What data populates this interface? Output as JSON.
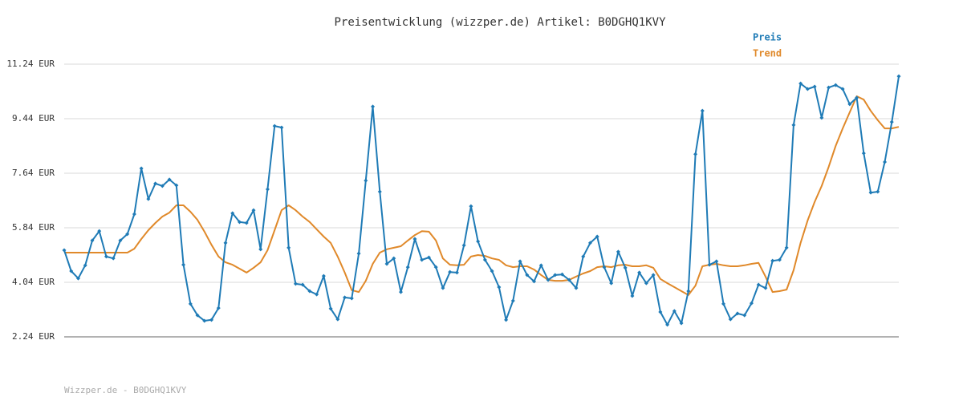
{
  "chart_data": {
    "type": "line",
    "title": "Preisentwicklung (wizzper.de) Artikel: B0DGHQ1KVY",
    "footer": "Wizzper.de - B0DGHQ1KVY",
    "ylim": [
      2.24,
      11.24
    ],
    "yticks": [
      {
        "value": 2.24,
        "label": "2.24 EUR"
      },
      {
        "value": 4.04,
        "label": "4.04 EUR"
      },
      {
        "value": 5.84,
        "label": "5.84 EUR"
      },
      {
        "value": 7.64,
        "label": "7.64 EUR"
      },
      {
        "value": 9.44,
        "label": "9.44 EUR"
      },
      {
        "value": 11.24,
        "label": "11.24 EUR"
      }
    ],
    "grid": true,
    "legend": "top-right",
    "series": [
      {
        "name": "Preis",
        "color": "#1f7bb6",
        "markers": true,
        "values": [
          5.1,
          4.41,
          4.17,
          4.6,
          5.42,
          5.73,
          4.89,
          4.83,
          5.42,
          5.63,
          6.29,
          7.8,
          6.79,
          7.3,
          7.22,
          7.43,
          7.24,
          4.62,
          3.33,
          2.95,
          2.77,
          2.8,
          3.19,
          5.34,
          6.32,
          6.03,
          6.0,
          6.42,
          5.13,
          7.11,
          9.2,
          9.15,
          5.18,
          3.99,
          3.96,
          3.75,
          3.64,
          4.25,
          3.17,
          2.82,
          3.54,
          3.51,
          4.99,
          7.4,
          9.84,
          7.03,
          4.65,
          4.83,
          3.72,
          4.54,
          5.47,
          4.78,
          4.86,
          4.54,
          3.85,
          4.38,
          4.36,
          5.26,
          6.55,
          5.39,
          4.78,
          4.41,
          3.88,
          2.8,
          3.43,
          4.73,
          4.28,
          4.07,
          4.6,
          4.12,
          4.28,
          4.3,
          4.12,
          3.85,
          4.89,
          5.34,
          5.55,
          4.54,
          4.01,
          5.05,
          4.52,
          3.59,
          4.36,
          4.01,
          4.28,
          3.06,
          2.64,
          3.09,
          2.69,
          3.75,
          8.27,
          9.7,
          4.62,
          4.73,
          3.33,
          2.82,
          3.01,
          2.95,
          3.35,
          3.96,
          3.85,
          4.75,
          4.78,
          5.18,
          9.23,
          10.6,
          10.42,
          10.5,
          9.47,
          10.47,
          10.55,
          10.42,
          9.92,
          10.13,
          8.3,
          7.0,
          7.03,
          8.01,
          9.33,
          10.84
        ]
      },
      {
        "name": "Trend",
        "color": "#e0892a",
        "markers": false,
        "values": [
          5.02,
          5.02,
          5.02,
          5.02,
          5.02,
          5.02,
          5.02,
          5.02,
          5.02,
          5.02,
          5.15,
          5.47,
          5.76,
          6.0,
          6.21,
          6.34,
          6.58,
          6.58,
          6.37,
          6.1,
          5.71,
          5.28,
          4.89,
          4.7,
          4.62,
          4.49,
          4.36,
          4.52,
          4.7,
          5.1,
          5.76,
          6.42,
          6.58,
          6.42,
          6.21,
          6.03,
          5.79,
          5.55,
          5.34,
          4.89,
          4.36,
          3.78,
          3.72,
          4.09,
          4.65,
          5.02,
          5.13,
          5.18,
          5.23,
          5.42,
          5.6,
          5.73,
          5.71,
          5.42,
          4.83,
          4.62,
          4.6,
          4.62,
          4.89,
          4.94,
          4.91,
          4.83,
          4.78,
          4.6,
          4.54,
          4.57,
          4.57,
          4.46,
          4.28,
          4.12,
          4.09,
          4.09,
          4.12,
          4.23,
          4.33,
          4.41,
          4.54,
          4.57,
          4.54,
          4.6,
          4.62,
          4.57,
          4.57,
          4.6,
          4.52,
          4.15,
          4.01,
          3.88,
          3.75,
          3.62,
          3.93,
          4.57,
          4.62,
          4.65,
          4.6,
          4.57,
          4.57,
          4.6,
          4.65,
          4.68,
          4.23,
          3.72,
          3.75,
          3.8,
          4.44,
          5.34,
          6.08,
          6.69,
          7.22,
          7.85,
          8.54,
          9.12,
          9.65,
          10.18,
          10.07,
          9.7,
          9.39,
          9.12,
          9.12,
          9.17
        ]
      }
    ]
  }
}
